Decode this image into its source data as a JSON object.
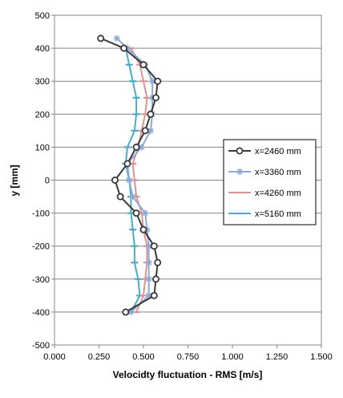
{
  "chart_data": {
    "type": "line",
    "title": "",
    "xlabel": "Velocidty fluctuation  - RMS [m/s]",
    "ylabel": "y [mm]",
    "xlim": [
      0,
      1.5
    ],
    "ylim": [
      -500,
      500
    ],
    "xticks": [
      "0.000",
      "0.250",
      "0.500",
      "0.750",
      "1.000",
      "1.250",
      "1.500"
    ],
    "yticks": [
      "500",
      "400",
      "300",
      "200",
      "100",
      "0",
      "-100",
      "-200",
      "-300",
      "-400",
      "-500"
    ],
    "grid": "horizontal",
    "legend_position": "right",
    "series": [
      {
        "name": "x=2460 mm",
        "color": "#3a3a3a",
        "marker": "circle",
        "points": [
          [
            0.26,
            430
          ],
          [
            0.39,
            400
          ],
          [
            0.5,
            350
          ],
          [
            0.58,
            300
          ],
          [
            0.57,
            250
          ],
          [
            0.54,
            200
          ],
          [
            0.51,
            150
          ],
          [
            0.46,
            100
          ],
          [
            0.41,
            50
          ],
          [
            0.34,
            0
          ],
          [
            0.37,
            -50
          ],
          [
            0.46,
            -100
          ],
          [
            0.5,
            -150
          ],
          [
            0.56,
            -200
          ],
          [
            0.58,
            -250
          ],
          [
            0.57,
            -300
          ],
          [
            0.56,
            -350
          ],
          [
            0.4,
            -400
          ]
        ]
      },
      {
        "name": "x=3360 mm",
        "color": "#8ea9d4",
        "marker": "star",
        "points": [
          [
            0.35,
            430
          ],
          [
            0.41,
            400
          ],
          [
            0.51,
            350
          ],
          [
            0.55,
            300
          ],
          [
            0.55,
            250
          ],
          [
            0.55,
            200
          ],
          [
            0.54,
            150
          ],
          [
            0.49,
            100
          ],
          [
            0.41,
            50
          ],
          [
            0.42,
            0
          ],
          [
            0.44,
            -50
          ],
          [
            0.51,
            -100
          ],
          [
            0.52,
            -150
          ],
          [
            0.53,
            -200
          ],
          [
            0.53,
            -250
          ],
          [
            0.53,
            -300
          ],
          [
            0.53,
            -350
          ],
          [
            0.43,
            -400
          ]
        ]
      },
      {
        "name": "x=4260 mm",
        "color": "#d99594",
        "marker": "dash",
        "points": [
          [
            0.43,
            400
          ],
          [
            0.48,
            350
          ],
          [
            0.5,
            300
          ],
          [
            0.52,
            250
          ],
          [
            0.51,
            200
          ],
          [
            0.49,
            150
          ],
          [
            0.47,
            100
          ],
          [
            0.44,
            50
          ],
          [
            0.45,
            0
          ],
          [
            0.46,
            -50
          ],
          [
            0.49,
            -100
          ],
          [
            0.5,
            -150
          ],
          [
            0.52,
            -200
          ],
          [
            0.52,
            -250
          ],
          [
            0.51,
            -300
          ],
          [
            0.5,
            -350
          ],
          [
            0.46,
            -400
          ]
        ]
      },
      {
        "name": "x=5160 mm",
        "color": "#4bacc6",
        "marker": "dash",
        "points": [
          [
            0.4,
            400
          ],
          [
            0.42,
            350
          ],
          [
            0.44,
            300
          ],
          [
            0.46,
            250
          ],
          [
            0.46,
            200
          ],
          [
            0.45,
            150
          ],
          [
            0.41,
            100
          ],
          [
            0.4,
            50
          ],
          [
            0.42,
            0
          ],
          [
            0.43,
            -50
          ],
          [
            0.43,
            -100
          ],
          [
            0.44,
            -150
          ],
          [
            0.45,
            -200
          ],
          [
            0.45,
            -250
          ],
          [
            0.47,
            -300
          ],
          [
            0.48,
            -350
          ],
          [
            0.43,
            -400
          ]
        ]
      }
    ]
  }
}
